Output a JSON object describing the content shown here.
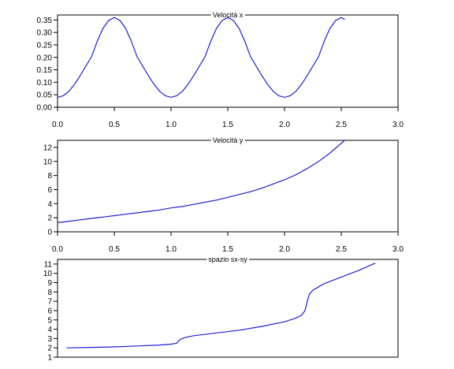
{
  "chart_data": [
    {
      "type": "line",
      "title": "Velocità x",
      "xlim": [
        0,
        3
      ],
      "ylim": [
        0,
        0.37
      ],
      "xticks": [
        "0.0",
        "0.5",
        "1.0",
        "1.5",
        "2.0",
        "2.5",
        "3.0"
      ],
      "xtick_values": [
        0,
        0.5,
        1,
        1.5,
        2,
        2.5,
        3
      ],
      "yticks": [
        "0.00",
        "0.05",
        "0.10",
        "0.15",
        "0.20",
        "0.25",
        "0.30",
        "0.35"
      ],
      "ytick_values": [
        0,
        0.05,
        0.1,
        0.15,
        0.2,
        0.25,
        0.3,
        0.35
      ],
      "series": [
        {
          "x": [
            0.0,
            0.05,
            0.1,
            0.15,
            0.2,
            0.25,
            0.3,
            0.35,
            0.4,
            0.45,
            0.5,
            0.55,
            0.6,
            0.65,
            0.7,
            0.75,
            0.8,
            0.85,
            0.9,
            0.95,
            1.0,
            1.05,
            1.1,
            1.15,
            1.2,
            1.25,
            1.3,
            1.35,
            1.4,
            1.45,
            1.5,
            1.55,
            1.6,
            1.65,
            1.7,
            1.75,
            1.8,
            1.85,
            1.9,
            1.95,
            2.0,
            2.05,
            2.1,
            2.15,
            2.2,
            2.25,
            2.3,
            2.35,
            2.4,
            2.45,
            2.5,
            2.53
          ],
          "y": [
            0.04,
            0.046,
            0.064,
            0.092,
            0.127,
            0.165,
            0.203,
            0.265,
            0.316,
            0.348,
            0.36,
            0.348,
            0.316,
            0.265,
            0.203,
            0.165,
            0.127,
            0.092,
            0.064,
            0.046,
            0.04,
            0.046,
            0.064,
            0.092,
            0.127,
            0.165,
            0.203,
            0.265,
            0.316,
            0.348,
            0.36,
            0.348,
            0.316,
            0.265,
            0.203,
            0.165,
            0.127,
            0.092,
            0.064,
            0.046,
            0.04,
            0.046,
            0.064,
            0.092,
            0.127,
            0.165,
            0.203,
            0.265,
            0.316,
            0.348,
            0.36,
            0.352
          ],
          "color": "#1f1fd6"
        }
      ]
    },
    {
      "type": "line",
      "title": "Velocità y",
      "xlim": [
        0,
        3
      ],
      "ylim": [
        0,
        13
      ],
      "xticks": [
        "0.0",
        "0.5",
        "1.0",
        "1.5",
        "2.0",
        "2.5",
        "3.0"
      ],
      "xtick_values": [
        0,
        0.5,
        1,
        1.5,
        2,
        2.5,
        3
      ],
      "yticks": [
        "0",
        "2",
        "4",
        "6",
        "8",
        "10",
        "12"
      ],
      "ytick_values": [
        0,
        2,
        4,
        6,
        8,
        10,
        12
      ],
      "series": [
        {
          "x": [
            0.0,
            0.1,
            0.2,
            0.3,
            0.4,
            0.5,
            0.6,
            0.7,
            0.8,
            0.9,
            1.0,
            1.1,
            1.2,
            1.3,
            1.4,
            1.5,
            1.6,
            1.7,
            1.8,
            1.9,
            2.0,
            2.1,
            2.2,
            2.3,
            2.4,
            2.53
          ],
          "y": [
            1.3,
            1.5,
            1.7,
            1.9,
            2.1,
            2.3,
            2.5,
            2.7,
            2.9,
            3.1,
            3.4,
            3.6,
            3.9,
            4.2,
            4.5,
            4.9,
            5.3,
            5.7,
            6.2,
            6.8,
            7.4,
            8.1,
            9.0,
            10.0,
            11.2,
            13.0
          ],
          "color": "#1f1fd6"
        }
      ]
    },
    {
      "type": "line",
      "title": "spazio sx-sy",
      "xlim": [
        0,
        3
      ],
      "ylim": [
        1,
        11.5
      ],
      "xticks": [],
      "xtick_values": [],
      "yticks": [
        "1",
        "2",
        "3",
        "4",
        "5",
        "6",
        "7",
        "8",
        "9",
        "10",
        "11"
      ],
      "ytick_values": [
        1,
        2,
        3,
        4,
        5,
        6,
        7,
        8,
        9,
        10,
        11
      ],
      "series": [
        {
          "x": [
            0.08,
            0.3,
            0.5,
            0.7,
            0.9,
            1.0,
            1.05,
            1.08,
            1.12,
            1.2,
            1.4,
            1.6,
            1.8,
            2.0,
            2.1,
            2.15,
            2.18,
            2.2,
            2.22,
            2.25,
            2.35,
            2.5,
            2.65,
            2.8
          ],
          "y": [
            2.0,
            2.05,
            2.1,
            2.2,
            2.3,
            2.4,
            2.5,
            2.9,
            3.1,
            3.3,
            3.6,
            3.9,
            4.3,
            4.8,
            5.2,
            5.5,
            6.0,
            7.0,
            7.8,
            8.2,
            8.9,
            9.6,
            10.3,
            11.1
          ],
          "color": "#1f1fd6"
        }
      ]
    }
  ]
}
